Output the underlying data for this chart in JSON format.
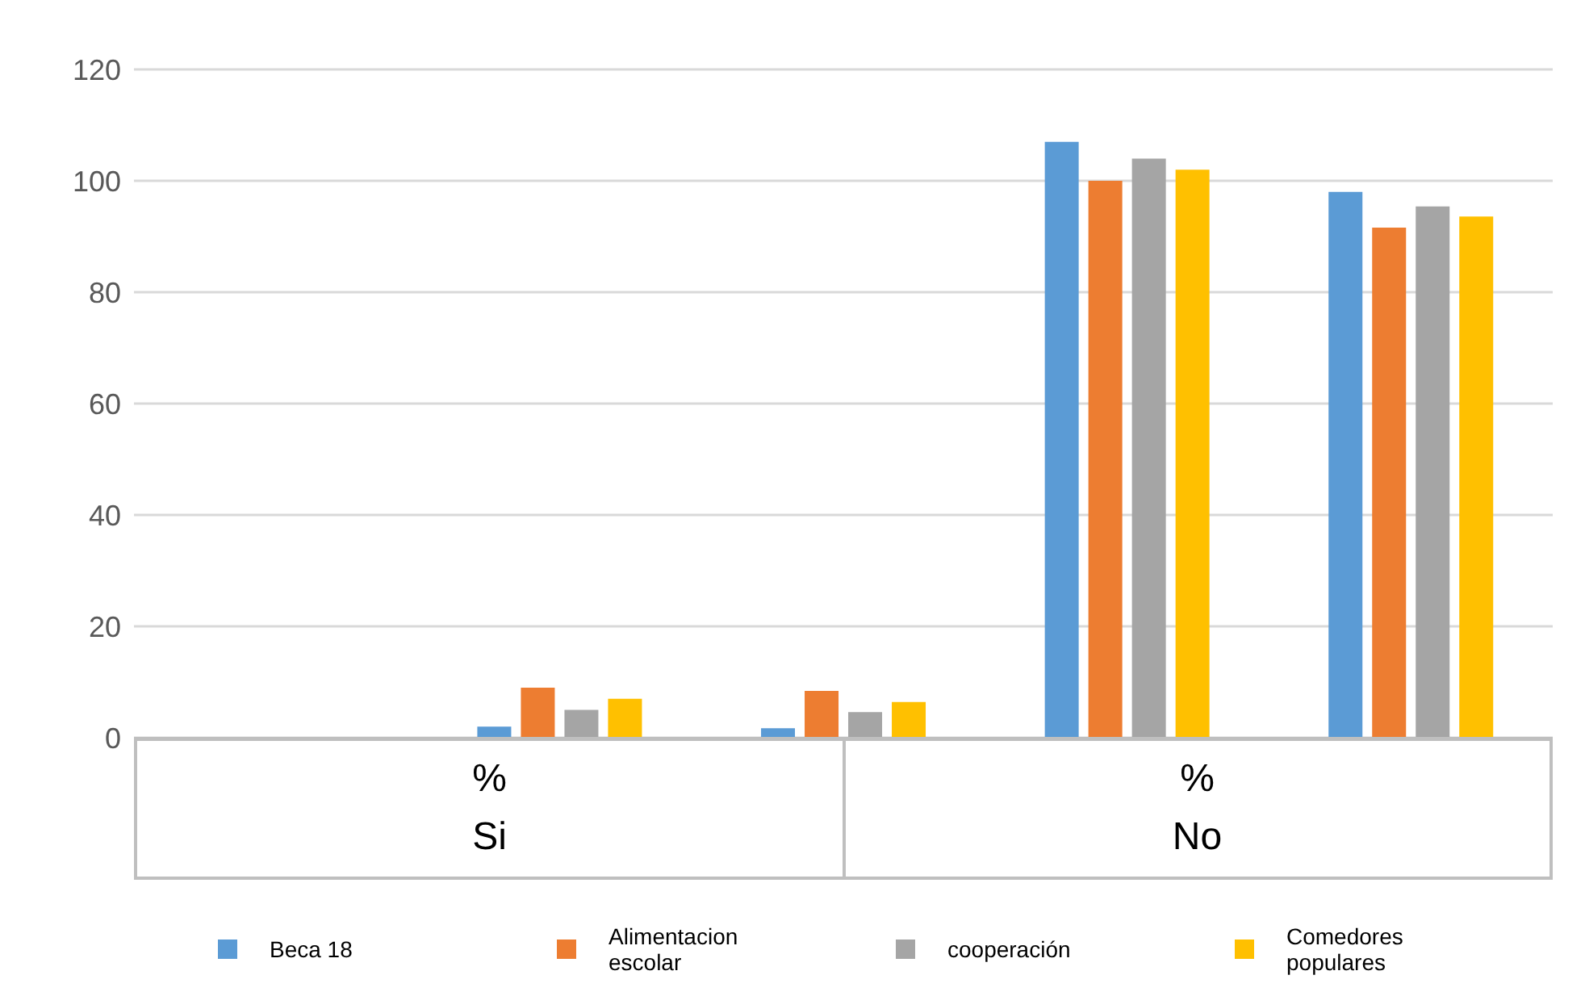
{
  "chart_data": {
    "type": "bar",
    "categories": [
      null,
      null,
      null,
      null,
      null
    ],
    "series": [
      {
        "name": "Beca 18",
        "color": "#5b9bd5",
        "values": [
          null,
          2,
          1.7,
          107,
          98
        ]
      },
      {
        "name": "Alimentacion escolar",
        "color": "#ed7d31",
        "values": [
          null,
          9,
          8.4,
          100,
          91.6
        ]
      },
      {
        "name": "cooperación",
        "color": "#a5a5a5",
        "values": [
          null,
          5,
          4.6,
          104,
          95.4
        ]
      },
      {
        "name": "Comedores populares",
        "color": "#ffc000",
        "values": [
          null,
          7,
          6.4,
          102,
          93.6
        ]
      }
    ],
    "ylim": [
      0,
      120
    ],
    "yticks": [
      0,
      20,
      40,
      60,
      80,
      100,
      120
    ],
    "grid": "y",
    "legend": "bottom",
    "annotations": [
      "%\nSi",
      "%\nNo"
    ]
  }
}
